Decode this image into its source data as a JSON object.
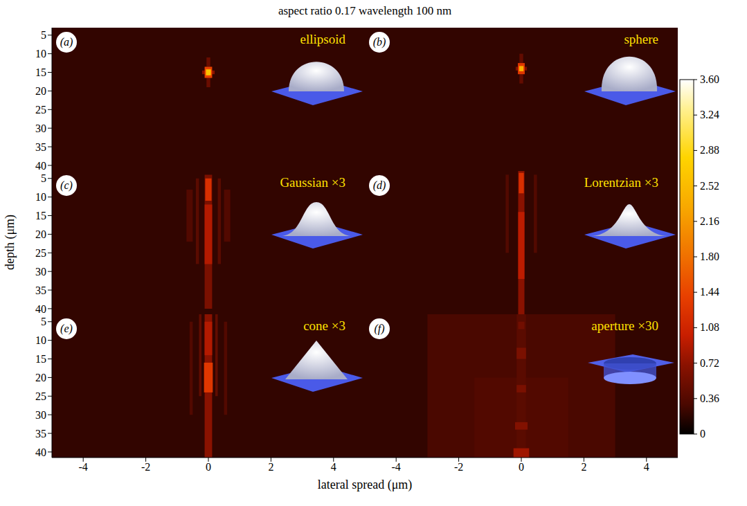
{
  "chart_data": {
    "type": "heatmap",
    "title": "aspect ratio 0.17 wavelength 100 nm",
    "x_label": "lateral spread (μm)",
    "y_label": "depth (μm)",
    "xlim": [
      -5,
      5
    ],
    "xticks": [
      -4,
      -2,
      0,
      2,
      4
    ],
    "ylim": [
      3,
      41.5
    ],
    "yticks": [
      5,
      10,
      15,
      20,
      25,
      30,
      35,
      40
    ],
    "colorbar": {
      "range": [
        0,
        3.6
      ],
      "ticks": [
        0,
        0.36,
        0.72,
        1.08,
        1.44,
        {
          "value": 1.8,
          "label": "1.80"
        },
        2.16,
        2.52,
        2.88,
        3.24,
        {
          "value": 3.6,
          "label": "3.60"
        }
      ]
    },
    "panels": [
      {
        "letter": "(a)",
        "label": "ellipsoid",
        "background": 0.2,
        "cells": [
          [
            -0.06,
            0.06,
            11,
            13.5,
            0.5
          ],
          [
            -0.06,
            0.06,
            16.5,
            19,
            0.5
          ],
          [
            -0.2,
            0.2,
            14.5,
            15.5,
            0.7
          ],
          [
            -0.12,
            0.12,
            13.5,
            16.5,
            1.4
          ],
          [
            -0.08,
            0.08,
            14.2,
            15.8,
            2.6
          ]
        ]
      },
      {
        "letter": "(b)",
        "label": "sphere",
        "background": 0.2,
        "cells": [
          [
            -0.06,
            0.06,
            10,
            12.5,
            0.45
          ],
          [
            -0.06,
            0.06,
            15.5,
            18,
            0.45
          ],
          [
            -0.18,
            0.18,
            13.5,
            14.5,
            0.65
          ],
          [
            -0.11,
            0.11,
            12.5,
            15.5,
            1.3
          ],
          [
            -0.07,
            0.07,
            13.3,
            14.7,
            2.4
          ]
        ]
      },
      {
        "letter": "(c)",
        "label": "Gaussian ×3",
        "background": 0.2,
        "cells": [
          [
            -0.7,
            -0.5,
            8,
            22,
            0.35
          ],
          [
            0.5,
            0.7,
            8,
            22,
            0.35
          ],
          [
            -0.4,
            -0.3,
            5,
            28,
            0.4
          ],
          [
            0.3,
            0.4,
            5,
            28,
            0.4
          ],
          [
            -0.12,
            0.12,
            4,
            40,
            0.6
          ],
          [
            -0.12,
            0.12,
            12,
            28,
            0.9
          ],
          [
            -0.1,
            0.1,
            5,
            11,
            1.2
          ]
        ]
      },
      {
        "letter": "(d)",
        "label": "Lorentzian ×3",
        "background": 0.2,
        "cells": [
          [
            -0.5,
            -0.4,
            4,
            25,
            0.35
          ],
          [
            0.4,
            0.5,
            4,
            25,
            0.35
          ],
          [
            -0.1,
            0.1,
            3,
            41.5,
            0.7
          ],
          [
            -0.1,
            0.1,
            14,
            32,
            0.95
          ],
          [
            -0.08,
            0.08,
            3.5,
            9,
            1.2
          ]
        ]
      },
      {
        "letter": "(e)",
        "label": "cone ×3",
        "background": 0.2,
        "cells": [
          [
            -0.6,
            -0.5,
            5,
            30,
            0.35
          ],
          [
            0.5,
            0.6,
            5,
            30,
            0.35
          ],
          [
            -0.3,
            -0.22,
            3,
            25,
            0.45
          ],
          [
            0.22,
            0.3,
            3,
            25,
            0.45
          ],
          [
            -0.12,
            0.12,
            3,
            41.5,
            0.7
          ],
          [
            -0.12,
            0.12,
            5,
            14,
            0.9
          ],
          [
            -0.14,
            0.14,
            16,
            24,
            1.3
          ]
        ]
      },
      {
        "letter": "(f)",
        "label": "aperture ×30",
        "background": 0.2,
        "cells": [
          [
            -3,
            3,
            3,
            41.5,
            0.3
          ],
          [
            -1.5,
            1.5,
            20,
            41.5,
            0.35
          ],
          [
            -0.15,
            0.15,
            3,
            41.5,
            0.4
          ],
          [
            -0.1,
            0.1,
            5,
            7,
            0.55
          ],
          [
            -0.15,
            0.15,
            12,
            15,
            0.6
          ],
          [
            -0.15,
            0.15,
            22,
            24,
            0.6
          ],
          [
            -0.2,
            0.2,
            32,
            34,
            0.65
          ],
          [
            -0.25,
            0.25,
            39,
            41.5,
            0.8
          ]
        ]
      }
    ]
  }
}
